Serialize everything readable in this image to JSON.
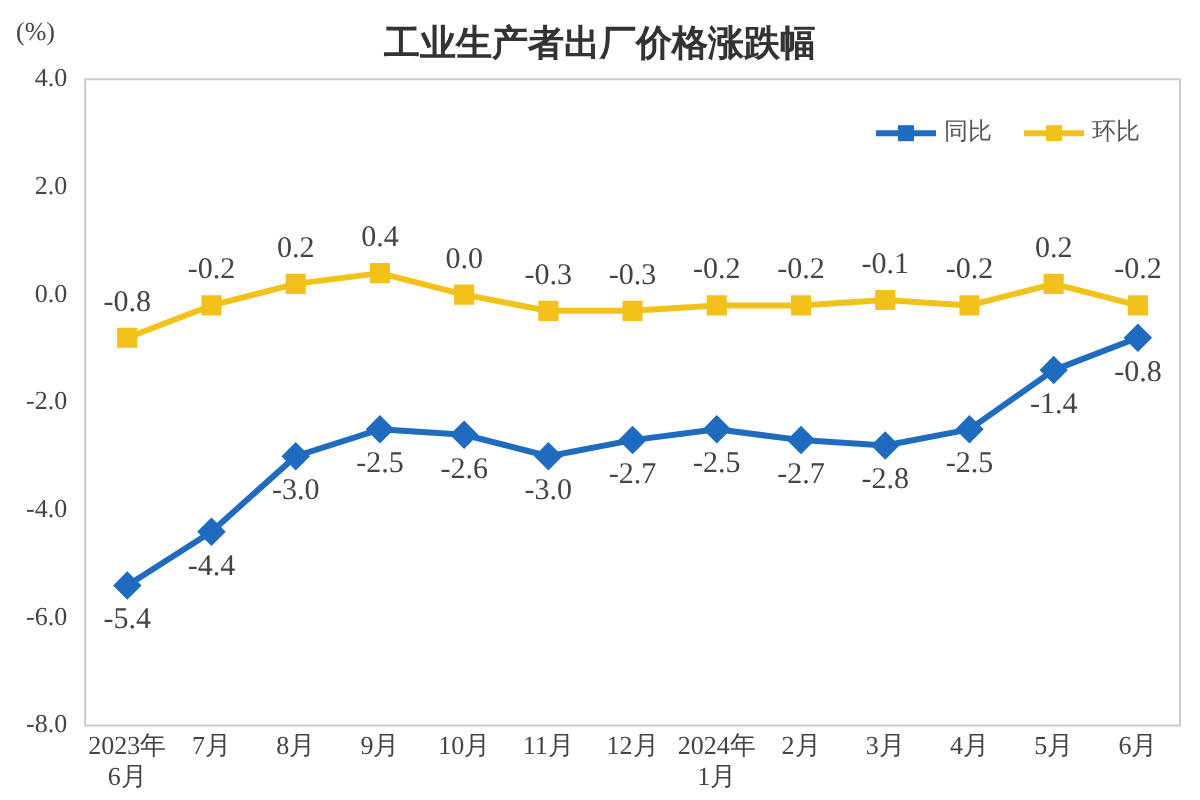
{
  "chart_data": {
    "type": "line",
    "title": "工业生产者出厂价格涨跌幅",
    "ylabel": "(%)",
    "categories": [
      "2023年\n6月",
      "7月",
      "8月",
      "9月",
      "10月",
      "11月",
      "12月",
      "2024年\n1月",
      "2月",
      "3月",
      "4月",
      "5月",
      "6月"
    ],
    "series": [
      {
        "name": "同比",
        "color": "#1f6bbf",
        "marker": "diamond",
        "values": [
          -5.4,
          -4.4,
          -3.0,
          -2.5,
          -2.6,
          -3.0,
          -2.7,
          -2.5,
          -2.7,
          -2.8,
          -2.5,
          -1.4,
          -0.8
        ],
        "value_labels": [
          "-5.4",
          "-4.4",
          "-3.0",
          "-2.5",
          "-2.6",
          "-3.0",
          "-2.7",
          "-2.5",
          "-2.7",
          "-2.8",
          "-2.5",
          "-1.4",
          "-0.8"
        ]
      },
      {
        "name": "环比",
        "color": "#f2c21b",
        "marker": "square",
        "values": [
          -0.8,
          -0.2,
          0.2,
          0.4,
          0.0,
          -0.3,
          -0.3,
          -0.2,
          -0.2,
          -0.1,
          -0.2,
          0.2,
          -0.2
        ],
        "value_labels": [
          "-0.8",
          "-0.2",
          "0.2",
          "0.4",
          "0.0",
          "-0.3",
          "-0.3",
          "-0.2",
          "-0.2",
          "-0.1",
          "-0.2",
          "0.2",
          "-0.2"
        ]
      }
    ],
    "ylim": [
      -8,
      4
    ],
    "yticks": [
      {
        "value": -8,
        "label": "-8.0"
      },
      {
        "value": -6,
        "label": "-6.0"
      },
      {
        "value": -4,
        "label": "-4.0"
      },
      {
        "value": -2,
        "label": "-2.0"
      },
      {
        "value": 0,
        "label": "0.0"
      },
      {
        "value": 2,
        "label": "2.0"
      },
      {
        "value": 4,
        "label": "4.0"
      }
    ],
    "grid": false,
    "legend": "top right",
    "line_style": "solid"
  }
}
